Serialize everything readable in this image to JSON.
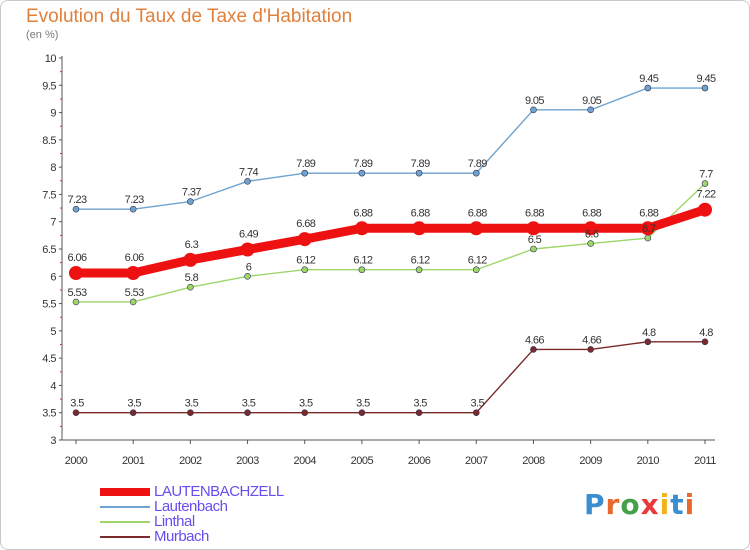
{
  "chart_data": {
    "type": "line",
    "title": "Evolution du Taux de Taxe d'Habitation",
    "subtitle": "(en %)",
    "x": [
      "2000",
      "2001",
      "2002",
      "2003",
      "2004",
      "2005",
      "2006",
      "2007",
      "2008",
      "2009",
      "2010",
      "2011"
    ],
    "ylim": [
      3,
      10
    ],
    "yticks": [
      "3",
      "3.5",
      "4",
      "4.5",
      "5",
      "5.5",
      "6",
      "6.5",
      "7",
      "7.5",
      "8",
      "8.5",
      "9",
      "9.5",
      "10"
    ],
    "grid": false,
    "legend_placement": "bottom-left",
    "series": [
      {
        "name": "LAUTENBACHZELL",
        "color": "#ee1111",
        "label_color": "#6a4cf0",
        "values": [
          6.06,
          6.06,
          6.3,
          6.49,
          6.68,
          6.88,
          6.88,
          6.88,
          6.88,
          6.88,
          6.88,
          7.22
        ],
        "labels": [
          "6.06",
          "6.06",
          "6.3",
          "6.49",
          "6.68",
          "6.88",
          "6.88",
          "6.88",
          "6.88",
          "6.88",
          "6.88",
          "7.22"
        ]
      },
      {
        "name": "Lautenbach",
        "color": "#6fa3cf",
        "label_color": "#6a4cf0",
        "values": [
          7.23,
          7.23,
          7.37,
          7.74,
          7.89,
          7.89,
          7.89,
          7.89,
          9.05,
          9.05,
          9.45,
          9.45
        ],
        "labels": [
          "7.23",
          "7.23",
          "7.37",
          "7.74",
          "7.89",
          "7.89",
          "7.89",
          "7.89",
          "9.05",
          "9.05",
          "9.45",
          "9.45"
        ]
      },
      {
        "name": "Linthal",
        "color": "#9ed66a",
        "label_color": "#6a4cf0",
        "values": [
          5.53,
          5.53,
          5.8,
          6,
          6.12,
          6.12,
          6.12,
          6.12,
          6.5,
          6.6,
          6.7,
          7.7
        ],
        "labels": [
          "5.53",
          "5.53",
          "5.8",
          "6",
          "6.12",
          "6.12",
          "6.12",
          "6.12",
          "6.5",
          "6.6",
          "6.7",
          "7.7"
        ]
      },
      {
        "name": "Murbach",
        "color": "#7a2a2a",
        "label_color": "#6a4cf0",
        "values": [
          3.5,
          3.5,
          3.5,
          3.5,
          3.5,
          3.5,
          3.5,
          3.5,
          4.66,
          4.66,
          4.8,
          4.8
        ],
        "labels": [
          "3.5",
          "3.5",
          "3.5",
          "3.5",
          "3.5",
          "3.5",
          "3.5",
          "3.5",
          "4.66",
          "4.66",
          "4.8",
          "4.8"
        ]
      }
    ]
  },
  "logo": {
    "text": "Proxiti",
    "colors": [
      "#3b8ed0",
      "#e8692c",
      "#46a04a",
      "#e83a3a",
      "#f2b21b",
      "#3b8ed0",
      "#e8692c"
    ]
  }
}
